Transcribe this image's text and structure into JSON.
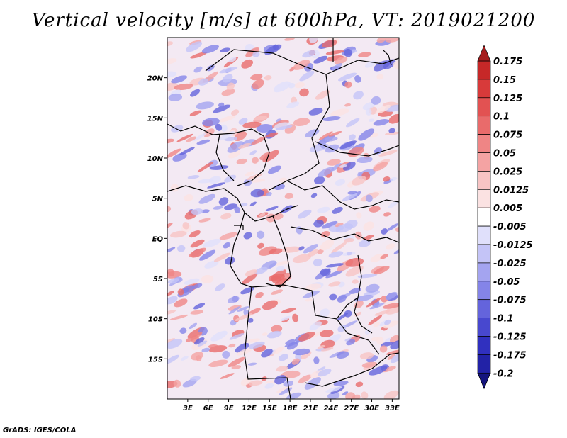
{
  "chart_data": {
    "type": "heatmap",
    "title": "Vertical velocity [m/s] at 600hPa, VT: 2019021200",
    "x_ticks": [
      "3E",
      "6E",
      "9E",
      "12E",
      "15E",
      "18E",
      "21E",
      "24E",
      "27E",
      "30E",
      "33E"
    ],
    "y_ticks": [
      "20N",
      "15N",
      "10N",
      "5N",
      "EQ",
      "5S",
      "10S",
      "15S"
    ],
    "xlim": [
      0,
      34
    ],
    "ylim": [
      -20,
      25
    ],
    "colorbar": {
      "levels": [
        "0.175",
        "0.15",
        "0.125",
        "0.1",
        "0.075",
        "0.05",
        "0.025",
        "0.0125",
        "0.005",
        "-0.005",
        "-0.0125",
        "-0.025",
        "-0.05",
        "-0.075",
        "-0.1",
        "-0.125",
        "-0.175",
        "-0.2"
      ],
      "colors": [
        "#a51c1c",
        "#c62828",
        "#d83a3a",
        "#e25252",
        "#e96b6b",
        "#ef8585",
        "#f4a3a3",
        "#f8c4c4",
        "#fbe2e2",
        "#ffffff",
        "#e0e0fb",
        "#c4c4f7",
        "#a4a4f0",
        "#8484e8",
        "#6464dc",
        "#4848cf",
        "#3030bf",
        "#2222a6",
        "#14147e"
      ],
      "top_arrow_color": "#a51c1c",
      "bottom_arrow_color": "#14147e"
    }
  },
  "footer": {
    "credit": "GrADS: IGES/COLA"
  }
}
